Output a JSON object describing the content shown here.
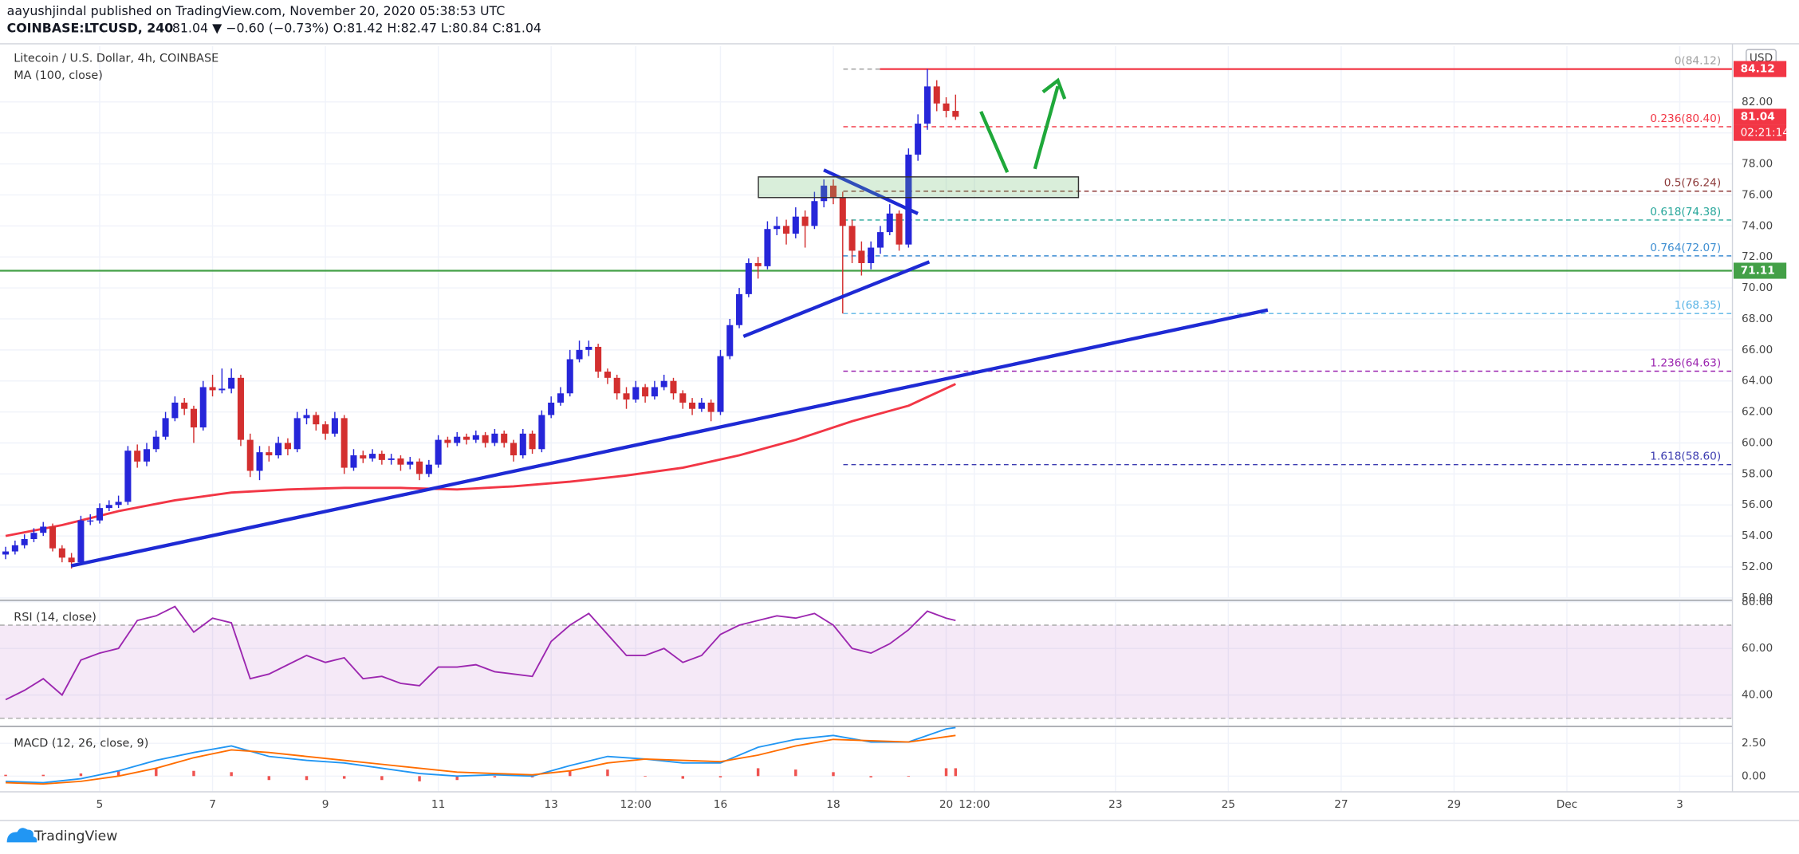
{
  "header": {
    "author_line": "aayushjindal published on TradingView.com, November 20, 2020 05:38:53 UTC",
    "symbol": "COINBASE:LTCUSD, 240",
    "quote": "81.04 ▼ −0.60 (−0.73%) O:81.42 H:82.47 L:80.84 C:81.04"
  },
  "footer": {
    "brand": "TradingView"
  },
  "chart_data": [
    {
      "type": "candlestick",
      "title": "Litecoin / U.S. Dollar, 4h, COINBASE",
      "currency": "USD",
      "xlim": [
        -0.6,
        183.6
      ],
      "xticks": [
        {
          "value": 10,
          "label": "5"
        },
        {
          "value": 22,
          "label": "7"
        },
        {
          "value": 34,
          "label": "9"
        },
        {
          "value": 46,
          "label": "11"
        },
        {
          "value": 58,
          "label": "13"
        },
        {
          "value": 67,
          "label": "12:00"
        },
        {
          "value": 76,
          "label": "16"
        },
        {
          "value": 88,
          "label": "18"
        },
        {
          "value": 100,
          "label": "20"
        },
        {
          "value": 103,
          "label": "12:00"
        },
        {
          "value": 118,
          "label": "23"
        },
        {
          "value": 130,
          "label": "25"
        },
        {
          "value": 142,
          "label": "27"
        },
        {
          "value": 154,
          "label": "29"
        },
        {
          "value": 166,
          "label": "Dec"
        },
        {
          "value": 178,
          "label": "3"
        }
      ],
      "ylim": [
        50,
        85.6
      ],
      "yticks": [
        {
          "value": 50,
          "label": "50.00"
        },
        {
          "value": 52,
          "label": "52.00"
        },
        {
          "value": 54,
          "label": "54.00"
        },
        {
          "value": 56,
          "label": "56.00"
        },
        {
          "value": 58,
          "label": "58.00"
        },
        {
          "value": 60,
          "label": "60.00"
        },
        {
          "value": 62,
          "label": "62.00"
        },
        {
          "value": 64,
          "label": "64.00"
        },
        {
          "value": 66,
          "label": "66.00"
        },
        {
          "value": 68,
          "label": "68.00"
        },
        {
          "value": 70,
          "label": "70.00"
        },
        {
          "value": 72,
          "label": "72.00"
        },
        {
          "value": 74,
          "label": "74.00"
        },
        {
          "value": 76,
          "label": "76.00"
        },
        {
          "value": 78,
          "label": "78.00"
        },
        {
          "value": 80,
          "label": "80.00"
        },
        {
          "value": 82,
          "label": "82.00"
        }
      ],
      "grid": true,
      "up_color": "#2626d9",
      "down_color": "#d32f2f",
      "open": [
        52.8,
        53.0,
        53.4,
        53.8,
        54.2,
        54.6,
        53.2,
        52.6,
        52.3,
        55.0,
        55.0,
        55.8,
        56.0,
        56.2,
        59.5,
        58.8,
        59.6,
        60.4,
        61.6,
        62.6,
        62.2,
        61.0,
        63.6,
        63.4,
        63.5,
        64.2,
        60.2,
        58.2,
        59.4,
        59.2,
        60.0,
        59.6,
        61.6,
        61.8,
        61.2,
        60.6,
        61.6,
        58.4,
        59.2,
        59.0,
        59.3,
        58.9,
        59.0,
        58.6,
        58.8,
        58.0,
        58.6,
        60.2,
        60.0,
        60.4,
        60.2,
        60.5,
        60.0,
        60.6,
        60.0,
        59.2,
        60.6,
        59.6,
        61.8,
        62.6,
        63.2,
        65.4,
        66.0,
        66.2,
        64.6,
        64.2,
        63.2,
        62.8,
        63.6,
        63.0,
        63.6,
        64.0,
        63.2,
        62.6,
        62.2,
        62.6,
        62.0,
        65.6,
        67.6,
        69.6,
        71.6,
        71.4,
        73.8,
        74.0,
        73.5,
        74.6,
        74.0,
        75.6,
        76.6,
        75.8,
        74.0,
        72.4,
        71.6,
        72.6,
        73.6,
        74.8,
        72.8,
        78.6,
        80.6,
        83.0,
        81.9,
        81.42
      ],
      "high": [
        53.3,
        53.7,
        54.1,
        54.5,
        54.9,
        54.8,
        53.4,
        52.9,
        55.3,
        55.4,
        56.1,
        56.3,
        56.6,
        59.8,
        59.9,
        60.0,
        60.8,
        62.0,
        63.0,
        62.9,
        62.4,
        64.0,
        64.4,
        64.8,
        64.8,
        64.4,
        60.6,
        59.8,
        59.8,
        60.4,
        60.3,
        62.0,
        62.2,
        62.0,
        61.4,
        62.0,
        61.8,
        59.6,
        59.5,
        59.6,
        59.5,
        59.3,
        59.2,
        59.1,
        59.0,
        58.9,
        60.5,
        60.4,
        60.7,
        60.6,
        60.8,
        60.7,
        60.9,
        60.8,
        60.2,
        60.9,
        60.8,
        62.1,
        63.0,
        63.6,
        66.0,
        66.6,
        66.6,
        66.4,
        64.8,
        64.4,
        63.6,
        64.0,
        63.8,
        64.0,
        64.4,
        64.2,
        63.4,
        62.9,
        62.9,
        62.8,
        66.0,
        68.0,
        70.0,
        71.9,
        72.0,
        74.3,
        74.6,
        74.4,
        75.2,
        75.0,
        76.2,
        77.0,
        77.0,
        76.2,
        74.4,
        73.0,
        73.0,
        74.0,
        75.4,
        75.0,
        79.0,
        81.2,
        84.12,
        83.4,
        82.3,
        82.47
      ],
      "low": [
        52.5,
        52.8,
        53.2,
        53.6,
        54.0,
        53.0,
        52.3,
        51.9,
        52.1,
        54.7,
        54.8,
        55.6,
        55.8,
        56.0,
        58.4,
        58.5,
        59.4,
        60.2,
        61.4,
        61.8,
        60.0,
        60.8,
        63.0,
        63.2,
        63.2,
        59.8,
        57.8,
        57.6,
        58.8,
        59.0,
        59.2,
        59.4,
        61.2,
        60.8,
        60.2,
        60.4,
        58.0,
        58.2,
        58.7,
        58.8,
        58.6,
        58.6,
        58.2,
        58.3,
        57.6,
        57.8,
        58.4,
        59.7,
        59.8,
        59.9,
        60.0,
        59.7,
        59.8,
        59.7,
        58.8,
        59.0,
        59.3,
        59.4,
        61.6,
        62.4,
        63.0,
        65.2,
        65.6,
        64.2,
        63.8,
        62.8,
        62.2,
        62.6,
        62.6,
        62.8,
        63.4,
        62.8,
        62.2,
        61.8,
        62.0,
        61.4,
        61.8,
        65.4,
        67.4,
        69.4,
        70.6,
        71.2,
        73.4,
        72.8,
        73.2,
        72.6,
        73.8,
        75.2,
        75.4,
        68.35,
        71.6,
        70.8,
        71.2,
        72.2,
        73.4,
        72.4,
        72.6,
        78.2,
        80.2,
        81.4,
        81.0,
        80.84
      ],
      "close": [
        53.0,
        53.4,
        53.8,
        54.2,
        54.6,
        53.2,
        52.6,
        52.3,
        55.0,
        55.0,
        55.8,
        56.0,
        56.2,
        59.5,
        58.8,
        59.6,
        60.4,
        61.6,
        62.6,
        62.2,
        61.0,
        63.6,
        63.4,
        63.5,
        64.2,
        60.2,
        58.2,
        59.4,
        59.2,
        60.0,
        59.6,
        61.6,
        61.8,
        61.2,
        60.6,
        61.6,
        58.4,
        59.2,
        59.0,
        59.3,
        58.9,
        59.0,
        58.6,
        58.8,
        58.0,
        58.6,
        60.2,
        60.0,
        60.4,
        60.2,
        60.5,
        60.0,
        60.6,
        60.0,
        59.2,
        60.6,
        59.6,
        61.8,
        62.6,
        63.2,
        65.4,
        66.0,
        66.2,
        64.6,
        64.2,
        63.2,
        62.8,
        63.6,
        63.0,
        63.6,
        64.0,
        63.2,
        62.6,
        62.2,
        62.6,
        62.0,
        65.6,
        67.6,
        69.6,
        71.6,
        71.4,
        73.8,
        74.0,
        73.5,
        74.6,
        74.0,
        75.6,
        76.6,
        75.8,
        74.0,
        72.4,
        71.6,
        72.6,
        73.6,
        74.8,
        72.8,
        78.6,
        80.6,
        83.0,
        81.9,
        81.42,
        81.04
      ],
      "series": [
        {
          "name": "MA (100, close)",
          "color": "#f23645",
          "x": [
            0,
            6,
            12,
            18,
            24,
            30,
            36,
            42,
            48,
            54,
            60,
            66,
            72,
            78,
            84,
            90,
            96,
            101
          ],
          "values": [
            54.0,
            54.7,
            55.6,
            56.3,
            56.8,
            57.0,
            57.1,
            57.1,
            57.0,
            57.2,
            57.5,
            57.9,
            58.4,
            59.2,
            60.2,
            61.4,
            62.4,
            63.8
          ]
        }
      ],
      "fib_levels": [
        {
          "label": "0(84.12)",
          "value": 84.12,
          "color": "#9e9e9e"
        },
        {
          "label": "0.236(80.40)",
          "value": 80.4,
          "color": "#f23645"
        },
        {
          "label": "0.5(76.24)",
          "value": 76.24,
          "color": "#8d3a3a"
        },
        {
          "label": "0.618(74.38)",
          "value": 74.38,
          "color": "#26a69a"
        },
        {
          "label": "0.764(72.07)",
          "value": 72.07,
          "color": "#3f8fd2"
        },
        {
          "label": "1(68.35)",
          "value": 68.35,
          "color": "#5ab4e6"
        },
        {
          "label": "1.236(64.63)",
          "value": 64.63,
          "color": "#9c27b0"
        },
        {
          "label": "1.618(58.60)",
          "value": 58.6,
          "color": "#3c3cb0"
        }
      ],
      "hlines": [
        {
          "value": 84.12,
          "color": "#f23645"
        },
        {
          "value": 71.11,
          "color": "#43a047"
        }
      ],
      "price_tags": [
        {
          "label": "84.12",
          "value": 84.12,
          "color": "#f23645"
        },
        {
          "label": "81.04",
          "value": 81.04,
          "color": "#f23645"
        },
        {
          "label": "71.11",
          "value": 71.11,
          "color": "#43a047"
        }
      ],
      "countdown": "02:21:14"
    },
    {
      "type": "line",
      "title": "RSI (14, close)",
      "ylim": [
        27,
        80.2
      ],
      "yticks": [
        {
          "value": 40,
          "label": "40.00"
        },
        {
          "value": 60,
          "label": "60.00"
        },
        {
          "value": 80,
          "label": "80.00"
        }
      ],
      "band": [
        30,
        70
      ],
      "band_color": "#9c27b0",
      "series": [
        {
          "color": "#9c27b0",
          "x": [
            0,
            2,
            4,
            6,
            8,
            10,
            12,
            14,
            16,
            18,
            20,
            22,
            24,
            26,
            28,
            30,
            32,
            34,
            36,
            38,
            40,
            42,
            44,
            46,
            48,
            50,
            52,
            54,
            56,
            58,
            60,
            62,
            64,
            66,
            68,
            70,
            72,
            74,
            76,
            78,
            80,
            82,
            84,
            86,
            88,
            90,
            92,
            94,
            96,
            98,
            100,
            101
          ],
          "values": [
            38,
            42,
            47,
            40,
            55,
            58,
            60,
            72,
            74,
            78,
            67,
            73,
            71,
            47,
            49,
            53,
            57,
            54,
            56,
            47,
            48,
            45,
            44,
            52,
            52,
            53,
            50,
            49,
            48,
            63,
            70,
            75,
            66,
            57,
            57,
            60,
            54,
            57,
            66,
            70,
            72,
            74,
            73,
            75,
            70,
            60,
            58,
            62,
            68,
            76,
            73,
            72
          ]
        }
      ]
    },
    {
      "type": "line",
      "title": "MACD (12, 26, close, 9)",
      "ylim": [
        -1.2,
        3.7
      ],
      "yticks": [
        {
          "value": 0,
          "label": "0.00"
        },
        {
          "value": 2.5,
          "label": "2.50"
        }
      ],
      "x": [
        0,
        4,
        8,
        12,
        16,
        20,
        24,
        28,
        32,
        36,
        40,
        44,
        48,
        52,
        56,
        60,
        64,
        68,
        72,
        76,
        80,
        84,
        88,
        92,
        96,
        100,
        101
      ],
      "series": [
        {
          "color": "#2196f3",
          "values": [
            -0.4,
            -0.5,
            -0.2,
            0.4,
            1.2,
            1.8,
            2.3,
            1.5,
            1.2,
            1.0,
            0.6,
            0.2,
            0.0,
            0.1,
            0.0,
            0.8,
            1.5,
            1.3,
            1.0,
            1.0,
            2.2,
            2.8,
            3.1,
            2.6,
            2.6,
            3.6,
            3.7
          ]
        },
        {
          "color": "#ff6d00",
          "values": [
            -0.5,
            -0.6,
            -0.4,
            0.0,
            0.6,
            1.4,
            2.0,
            1.8,
            1.5,
            1.2,
            0.9,
            0.6,
            0.3,
            0.2,
            0.1,
            0.4,
            1.0,
            1.3,
            1.2,
            1.1,
            1.6,
            2.3,
            2.8,
            2.7,
            2.6,
            3.0,
            3.1
          ]
        }
      ],
      "histogram": {
        "color": "#ef5350",
        "values": [
          0.1,
          0.1,
          0.2,
          0.4,
          0.6,
          0.4,
          0.3,
          -0.3,
          -0.3,
          -0.2,
          -0.3,
          -0.4,
          -0.3,
          -0.1,
          -0.1,
          0.4,
          0.5,
          0.0,
          -0.2,
          -0.1,
          0.6,
          0.5,
          0.3,
          -0.1,
          0.0,
          0.6,
          0.6
        ]
      }
    }
  ]
}
